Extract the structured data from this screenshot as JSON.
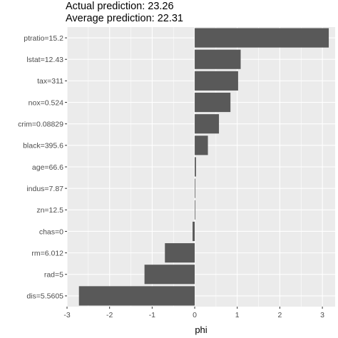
{
  "chart_data": {
    "type": "bar",
    "orientation": "horizontal",
    "subtitle_lines": [
      "Actual prediction: 23.26",
      "Average prediction: 22.31"
    ],
    "xlabel": "phi",
    "ylabel": "",
    "xlim": [
      -3,
      3.3
    ],
    "x_ticks": [
      -3,
      -2,
      -1,
      0,
      1,
      2,
      3
    ],
    "grid": true,
    "colors": {
      "bar": "#595959",
      "panel": "#ebebeb",
      "grid": "#ffffff"
    },
    "categories": [
      "ptratio=15.2",
      "lstat=12.43",
      "tax=311",
      "nox=0.524",
      "crim=0.08829",
      "black=395.6",
      "age=66.6",
      "indus=7.87",
      "zn=12.5",
      "chas=0",
      "rm=6.012",
      "rad=5",
      "dis=5.5605"
    ],
    "values": [
      3.15,
      1.08,
      1.02,
      0.84,
      0.57,
      0.31,
      0.03,
      0.01,
      0.01,
      -0.05,
      -0.7,
      -1.18,
      -2.72
    ]
  }
}
